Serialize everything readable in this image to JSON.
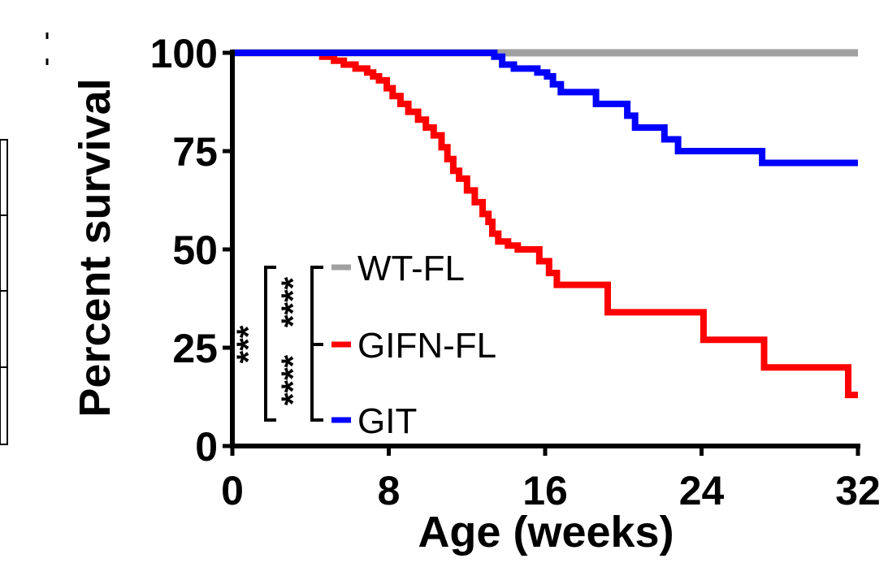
{
  "chart_data": {
    "type": "line",
    "step": true,
    "xlabel": "Age (weeks)",
    "ylabel": "Percent survival",
    "xlim": [
      0,
      32
    ],
    "ylim": [
      0,
      100
    ],
    "xticks": [
      "0",
      "8",
      "16",
      "24",
      "32"
    ],
    "yticks": [
      "0",
      "25",
      "50",
      "75",
      "100"
    ],
    "grid": false,
    "legend_position": "bottom-left inside plot",
    "series": [
      {
        "name": "WT-FL",
        "color": "#a0a0a0",
        "points": [
          [
            0,
            100
          ],
          [
            32,
            100
          ]
        ]
      },
      {
        "name": "GIFN-FL",
        "color": "#ff0000",
        "points": [
          [
            0,
            100
          ],
          [
            4.6,
            100
          ],
          [
            4.6,
            99
          ],
          [
            5.2,
            99
          ],
          [
            5.2,
            98
          ],
          [
            5.7,
            98
          ],
          [
            5.7,
            97
          ],
          [
            6.3,
            97
          ],
          [
            6.3,
            96
          ],
          [
            6.9,
            96
          ],
          [
            6.9,
            95
          ],
          [
            7.2,
            95
          ],
          [
            7.2,
            94
          ],
          [
            7.5,
            94
          ],
          [
            7.5,
            93
          ],
          [
            7.9,
            93
          ],
          [
            7.9,
            91
          ],
          [
            8.2,
            91
          ],
          [
            8.2,
            89
          ],
          [
            8.6,
            89
          ],
          [
            8.6,
            87
          ],
          [
            9.0,
            87
          ],
          [
            9.0,
            85
          ],
          [
            9.5,
            85
          ],
          [
            9.5,
            83
          ],
          [
            9.9,
            83
          ],
          [
            9.9,
            81
          ],
          [
            10.3,
            81
          ],
          [
            10.3,
            79
          ],
          [
            10.7,
            79
          ],
          [
            10.7,
            76
          ],
          [
            11.0,
            76
          ],
          [
            11.0,
            73
          ],
          [
            11.3,
            73
          ],
          [
            11.3,
            70
          ],
          [
            11.6,
            70
          ],
          [
            11.6,
            68
          ],
          [
            12.0,
            68
          ],
          [
            12.0,
            65
          ],
          [
            12.4,
            65
          ],
          [
            12.4,
            62
          ],
          [
            12.8,
            62
          ],
          [
            12.8,
            59
          ],
          [
            13.1,
            59
          ],
          [
            13.1,
            57
          ],
          [
            13.3,
            57
          ],
          [
            13.3,
            54
          ],
          [
            13.6,
            54
          ],
          [
            13.6,
            52
          ],
          [
            14.1,
            52
          ],
          [
            14.1,
            51
          ],
          [
            14.6,
            51
          ],
          [
            14.6,
            50
          ],
          [
            15.7,
            50
          ],
          [
            15.7,
            47
          ],
          [
            16.2,
            47
          ],
          [
            16.2,
            44
          ],
          [
            16.6,
            44
          ],
          [
            16.6,
            41
          ],
          [
            19.2,
            41
          ],
          [
            19.2,
            34
          ],
          [
            24.1,
            34
          ],
          [
            24.1,
            27
          ],
          [
            27.2,
            27
          ],
          [
            27.2,
            20
          ],
          [
            31.5,
            20
          ],
          [
            31.5,
            13
          ],
          [
            32,
            13
          ]
        ]
      },
      {
        "name": "GIT",
        "color": "#0000ff",
        "points": [
          [
            0,
            100
          ],
          [
            13.4,
            100
          ],
          [
            13.4,
            99
          ],
          [
            13.8,
            99
          ],
          [
            13.8,
            97
          ],
          [
            14.4,
            97
          ],
          [
            14.4,
            96
          ],
          [
            15.6,
            96
          ],
          [
            15.6,
            95
          ],
          [
            16.1,
            95
          ],
          [
            16.1,
            94
          ],
          [
            16.4,
            94
          ],
          [
            16.4,
            92
          ],
          [
            16.8,
            92
          ],
          [
            16.8,
            90
          ],
          [
            18.6,
            90
          ],
          [
            18.6,
            87
          ],
          [
            20.2,
            87
          ],
          [
            20.2,
            84
          ],
          [
            20.6,
            84
          ],
          [
            20.6,
            81
          ],
          [
            22.1,
            81
          ],
          [
            22.1,
            78
          ],
          [
            22.8,
            78
          ],
          [
            22.8,
            75
          ],
          [
            27.1,
            75
          ],
          [
            27.1,
            72
          ],
          [
            32,
            72
          ]
        ]
      }
    ],
    "significance": [
      {
        "pair": [
          "WT-FL",
          "GIFN-FL"
        ],
        "label": "****"
      },
      {
        "pair": [
          "GIFN-FL",
          "GIT"
        ],
        "label": "****"
      },
      {
        "pair": [
          "WT-FL",
          "GIT"
        ],
        "label": "***"
      }
    ]
  }
}
